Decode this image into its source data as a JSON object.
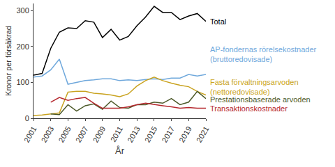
{
  "chart_data": {
    "type": "line",
    "x_label": "År",
    "y_label": "Kronor per försäkrad",
    "x": [
      2001,
      2002,
      2003,
      2004,
      2005,
      2006,
      2007,
      2008,
      2009,
      2010,
      2011,
      2012,
      2013,
      2014,
      2015,
      2016,
      2017,
      2018,
      2019,
      2020,
      2021
    ],
    "xlim": [
      2001,
      2021
    ],
    "xticks": [
      2001,
      2003,
      2005,
      2007,
      2009,
      2011,
      2013,
      2015,
      2017,
      2019,
      2021
    ],
    "ylim": [
      0,
      320
    ],
    "yticks": [
      0,
      100,
      200,
      300
    ],
    "grid": false,
    "series": [
      {
        "name": "Total",
        "color": "#000000",
        "values": [
          120,
          125,
          195,
          240,
          252,
          250,
          272,
          268,
          225,
          248,
          218,
          228,
          258,
          282,
          312,
          295,
          295,
          275,
          285,
          292,
          270
        ]
      },
      {
        "name": "AP-fondernas rörelsekostnader\n(bruttoredovisade)",
        "color": "#6fa8dc",
        "values": [
          115,
          118,
          135,
          165,
          95,
          100,
          105,
          107,
          110,
          110,
          105,
          107,
          105,
          108,
          110,
          108,
          112,
          112,
          122,
          118,
          122
        ]
      },
      {
        "name": "Fasta förvaltningsarvoden\n(nettoredovisade)",
        "color": "#c9a320",
        "values": [
          8,
          9,
          12,
          15,
          73,
          75,
          75,
          70,
          68,
          65,
          60,
          68,
          90,
          105,
          115,
          105,
          98,
          92,
          88,
          75,
          65
        ]
      },
      {
        "name": "Prestationsbaserade arvoden",
        "color": "#4d5a2a",
        "values": [
          null,
          null,
          12,
          10,
          38,
          20,
          35,
          40,
          25,
          48,
          30,
          28,
          38,
          38,
          45,
          42,
          55,
          38,
          45,
          75,
          55
        ]
      },
      {
        "name": "Transaktionskostnader",
        "color": "#b5282e",
        "values": [
          null,
          null,
          45,
          58,
          50,
          55,
          58,
          42,
          28,
          28,
          28,
          32,
          38,
          42,
          38,
          35,
          32,
          28,
          30,
          28,
          28
        ]
      }
    ]
  }
}
